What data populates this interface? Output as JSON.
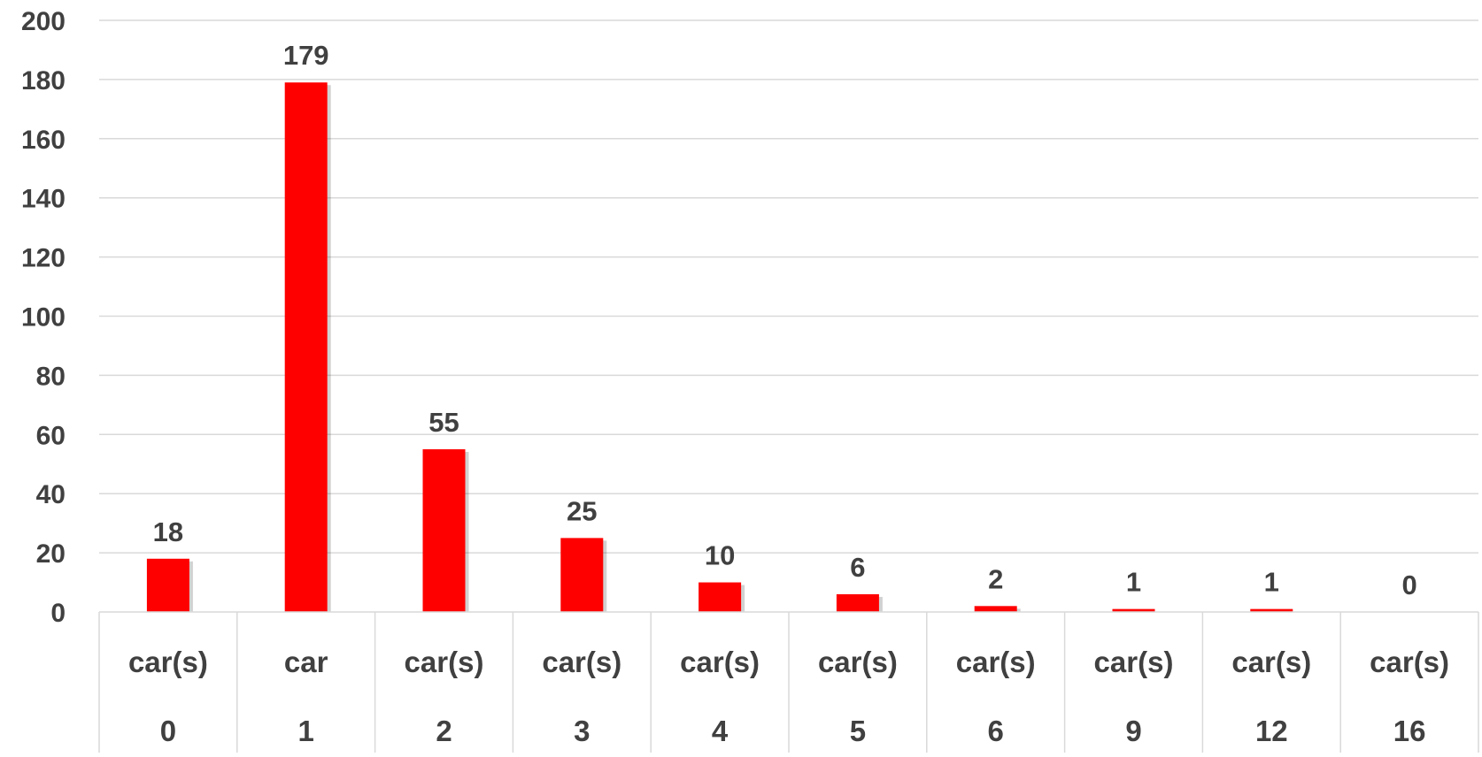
{
  "chart_data": {
    "type": "bar",
    "title": "",
    "xlabel": "",
    "ylabel": "",
    "ylim": [
      0,
      200
    ],
    "yticks": [
      0,
      20,
      40,
      60,
      80,
      100,
      120,
      140,
      160,
      180,
      200
    ],
    "grid": true,
    "categories": [
      {
        "unit": "car(s)",
        "count": "0"
      },
      {
        "unit": "car",
        "count": "1"
      },
      {
        "unit": "car(s)",
        "count": "2"
      },
      {
        "unit": "car(s)",
        "count": "3"
      },
      {
        "unit": "car(s)",
        "count": "4"
      },
      {
        "unit": "car(s)",
        "count": "5"
      },
      {
        "unit": "car(s)",
        "count": "6"
      },
      {
        "unit": "car(s)",
        "count": "9"
      },
      {
        "unit": "car(s)",
        "count": "12"
      },
      {
        "unit": "car(s)",
        "count": "16"
      }
    ],
    "values": [
      18,
      179,
      55,
      25,
      10,
      6,
      2,
      1,
      1,
      0
    ],
    "data_labels": [
      "18",
      "179",
      "55",
      "25",
      "10",
      "6",
      "2",
      "1",
      "1",
      "0"
    ],
    "bar_color": "#ff0000",
    "gridline_color": "#d9d9d9",
    "text_color": "#404040"
  }
}
